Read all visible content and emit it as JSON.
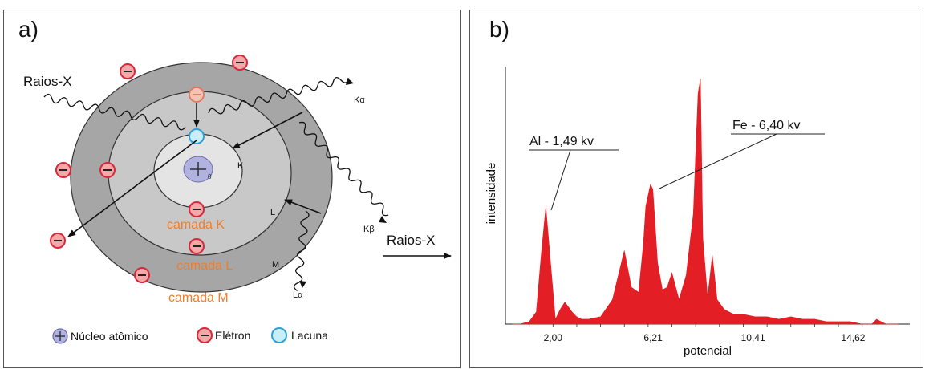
{
  "panel_a": {
    "label": "a)",
    "xray_in_label": "Raios-X",
    "xray_out_label": "Raios-X",
    "shell_letters": {
      "k": "K",
      "l": "L",
      "m": "M"
    },
    "layer_labels": {
      "k": "camada K",
      "l": "camada L",
      "m": "camada M"
    },
    "emission_labels": {
      "k_alpha": "Kα",
      "k_beta": "Kβ",
      "l_alpha": "Lα"
    },
    "nucleus_sub": "0",
    "legend": {
      "nucleus": "Núcleo atômico",
      "electron": "Elétron",
      "hole": "Lacuna"
    },
    "colors": {
      "outer_shell": "#a6a6a6",
      "middle_shell": "#c8c8c8",
      "inner_shell": "#e4e4e4",
      "electron_fill": "#f5a8a8",
      "electron_stroke": "#d6293b",
      "hole_stroke": "#2ea0d6",
      "nucleus_fill": "#b2b2e0",
      "layer_text": "#f07d2a"
    }
  },
  "panel_b": {
    "label": "b)",
    "ylabel": "intensidade",
    "xlabel": "potencial",
    "x_ticks": [
      "2,00",
      "6,21",
      "10,41",
      "14,62"
    ],
    "annotations": {
      "al": "Al - 1,49 kv",
      "fe": "Fe - 6,40 kv"
    },
    "colors": {
      "spectrum": "#e31e24"
    }
  },
  "chart_data": {
    "type": "area",
    "xlabel": "potencial",
    "ylabel": "intensidade",
    "x": [
      0.3,
      0.6,
      1.0,
      1.3,
      1.5,
      1.7,
      1.9,
      2.1,
      2.3,
      2.5,
      2.8,
      3.0,
      3.2,
      3.5,
      4.0,
      4.5,
      5.0,
      5.3,
      5.6,
      5.8,
      5.9,
      6.1,
      6.2,
      6.4,
      6.6,
      6.8,
      7.0,
      7.3,
      7.6,
      7.9,
      8.1,
      8.2,
      8.3,
      8.5,
      8.7,
      8.9,
      9.2,
      9.6,
      10.0,
      10.5,
      11.0,
      11.5,
      12.0,
      12.5,
      13.0,
      13.5,
      14.0,
      14.5,
      15.0,
      15.4,
      15.6,
      16.0,
      16.5
    ],
    "y": [
      0.0,
      0.0,
      0.01,
      0.05,
      0.28,
      0.48,
      0.25,
      0.02,
      0.06,
      0.09,
      0.05,
      0.03,
      0.02,
      0.02,
      0.03,
      0.1,
      0.3,
      0.15,
      0.13,
      0.33,
      0.48,
      0.57,
      0.55,
      0.25,
      0.14,
      0.15,
      0.21,
      0.1,
      0.2,
      0.45,
      0.94,
      1.0,
      0.35,
      0.11,
      0.28,
      0.1,
      0.06,
      0.04,
      0.04,
      0.03,
      0.03,
      0.02,
      0.03,
      0.02,
      0.02,
      0.01,
      0.01,
      0.01,
      0.0,
      0.0,
      0.02,
      0.0,
      0.0
    ],
    "xticks": [
      2.0,
      6.21,
      10.41,
      14.62
    ],
    "xlim": [
      0,
      17
    ],
    "ylim": [
      0,
      1.05
    ],
    "grid": false
  }
}
